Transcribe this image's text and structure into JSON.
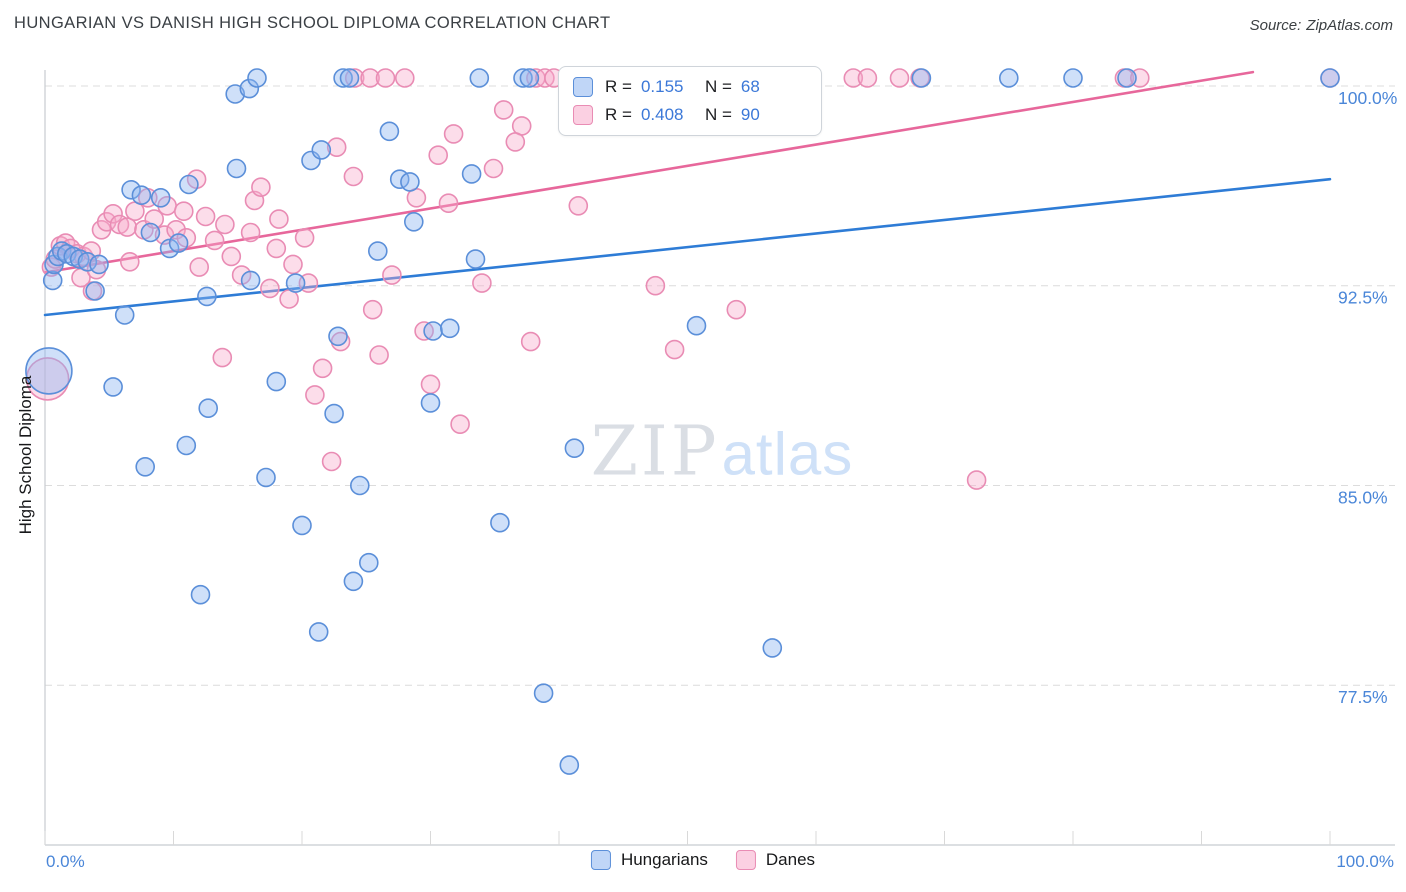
{
  "title": "HUNGARIAN VS DANISH HIGH SCHOOL DIPLOMA CORRELATION CHART",
  "source": {
    "label": "Source:",
    "name": "ZipAtlas.com"
  },
  "watermark": {
    "part1": "ZIP",
    "part2": "atlas"
  },
  "legend_box": {
    "rows": [
      {
        "r_label": "R =",
        "r_value": "0.155",
        "n_label": "N =",
        "n_value": "68"
      },
      {
        "r_label": "R =",
        "r_value": "0.408",
        "n_label": "N =",
        "n_value": "90"
      }
    ]
  },
  "bottom_legend": [
    {
      "label": "Hungarians"
    },
    {
      "label": "Danes"
    }
  ],
  "colors": {
    "grid": "#dcdcdc",
    "axis": "#c8ccd0",
    "tick_label": "#4a86d8",
    "hungarian_stroke": "#5b8fd9",
    "hungarian_fill": "rgba(141,180,240,0.42)",
    "hungarian_trend": "#2e7cd6",
    "dane_stroke": "#e98cb4",
    "dane_fill": "rgba(247,170,202,0.40)",
    "dane_trend": "#e7679b"
  },
  "chart_data": {
    "type": "scatter",
    "title": "HUNGARIAN VS DANISH HIGH SCHOOL DIPLOMA CORRELATION CHART",
    "xlabel": "",
    "ylabel": "High School Diploma",
    "xlim": [
      0,
      105
    ],
    "ylim": [
      71.5,
      100.6
    ],
    "x_tick_labels": [
      "0.0%",
      "100.0%"
    ],
    "y_ticks": [
      {
        "value": 100.0,
        "label": "100.0%"
      },
      {
        "value": 92.5,
        "label": "92.5%"
      },
      {
        "value": 85.0,
        "label": "85.0%"
      },
      {
        "value": 77.5,
        "label": "77.5%"
      }
    ],
    "grid": "horizontal-dashed",
    "legend_position": "top-center",
    "series": [
      {
        "name": "Hungarians",
        "R": 0.155,
        "N": 68,
        "stroke": "#5b8fd9",
        "fill": "rgba(141,180,240,0.42)",
        "trend": "#2e7cd6",
        "points": [
          [
            0.3,
            89.3,
            23
          ],
          [
            0.6,
            92.7
          ],
          [
            0.7,
            93.3
          ],
          [
            1.0,
            93.6
          ],
          [
            1.3,
            93.8
          ],
          [
            1.7,
            93.7
          ],
          [
            2.2,
            93.6
          ],
          [
            2.7,
            93.5
          ],
          [
            3.3,
            93.4
          ],
          [
            4.2,
            93.3
          ],
          [
            3.9,
            92.3
          ],
          [
            5.3,
            88.7
          ],
          [
            6.2,
            91.4
          ],
          [
            6.7,
            96.1
          ],
          [
            7.5,
            95.9
          ],
          [
            7.8,
            85.7
          ],
          [
            8.2,
            94.5
          ],
          [
            9.0,
            95.8
          ],
          [
            9.7,
            93.9
          ],
          [
            10.4,
            94.1
          ],
          [
            11.0,
            86.5
          ],
          [
            11.2,
            96.3
          ],
          [
            12.1,
            80.9
          ],
          [
            12.6,
            92.1
          ],
          [
            12.7,
            87.9
          ],
          [
            14.8,
            99.7
          ],
          [
            14.9,
            96.9
          ],
          [
            15.9,
            99.9
          ],
          [
            16.0,
            92.7
          ],
          [
            16.5,
            100.3
          ],
          [
            17.2,
            85.3
          ],
          [
            18.0,
            88.9
          ],
          [
            19.5,
            92.6
          ],
          [
            20.0,
            83.5
          ],
          [
            20.7,
            97.2
          ],
          [
            21.3,
            79.5
          ],
          [
            21.5,
            97.6
          ],
          [
            22.5,
            87.7
          ],
          [
            22.8,
            90.6
          ],
          [
            23.2,
            100.3
          ],
          [
            23.7,
            100.3
          ],
          [
            24.0,
            81.4
          ],
          [
            24.5,
            85.0
          ],
          [
            25.2,
            82.1
          ],
          [
            25.9,
            93.8
          ],
          [
            26.8,
            98.3
          ],
          [
            27.6,
            96.5
          ],
          [
            28.4,
            96.4
          ],
          [
            28.7,
            94.9
          ],
          [
            30.0,
            88.1
          ],
          [
            30.2,
            90.8
          ],
          [
            31.5,
            90.9
          ],
          [
            33.2,
            96.7
          ],
          [
            33.5,
            93.5
          ],
          [
            33.8,
            100.3
          ],
          [
            35.4,
            83.6
          ],
          [
            37.2,
            100.3
          ],
          [
            37.7,
            100.3
          ],
          [
            38.8,
            77.2
          ],
          [
            40.8,
            74.5
          ],
          [
            41.2,
            86.4
          ],
          [
            50.7,
            91.0
          ],
          [
            56.6,
            78.9
          ],
          [
            68.2,
            100.3
          ],
          [
            75.0,
            100.3
          ],
          [
            80.0,
            100.3
          ],
          [
            84.2,
            100.3
          ],
          [
            100.0,
            100.3
          ]
        ]
      },
      {
        "name": "Danes",
        "R": 0.408,
        "N": 90,
        "stroke": "#e98cb4",
        "fill": "rgba(247,170,202,0.40)",
        "trend": "#e7679b",
        "points": [
          [
            24.1,
            100.3
          ],
          [
            25.3,
            100.3
          ],
          [
            26.5,
            100.3
          ],
          [
            28.0,
            100.3
          ],
          [
            38.2,
            100.3
          ],
          [
            38.9,
            100.3
          ],
          [
            39.6,
            100.3
          ],
          [
            44.0,
            100.3
          ],
          [
            44.9,
            100.3
          ],
          [
            51.0,
            100.3
          ],
          [
            51.9,
            100.3
          ],
          [
            62.9,
            100.3
          ],
          [
            64.0,
            100.3
          ],
          [
            66.5,
            100.3
          ],
          [
            68.1,
            100.3
          ],
          [
            84.0,
            100.3
          ],
          [
            85.2,
            100.3
          ],
          [
            100.0,
            100.3
          ],
          [
            35.7,
            99.1
          ],
          [
            37.1,
            98.5
          ],
          [
            31.8,
            98.2
          ],
          [
            30.6,
            97.4
          ],
          [
            22.7,
            97.7
          ],
          [
            24.0,
            96.6
          ],
          [
            34.9,
            96.9
          ],
          [
            31.4,
            95.6
          ],
          [
            28.9,
            95.8
          ],
          [
            11.8,
            96.5
          ],
          [
            12.5,
            95.1
          ],
          [
            16.3,
            95.7
          ],
          [
            18.2,
            95.0
          ],
          [
            14.0,
            94.8
          ],
          [
            16.0,
            94.5
          ],
          [
            18.0,
            93.9
          ],
          [
            20.2,
            94.3
          ],
          [
            16.8,
            96.2
          ],
          [
            41.5,
            95.5
          ],
          [
            0.5,
            93.2
          ],
          [
            0.8,
            93.5
          ],
          [
            1.2,
            94.0
          ],
          [
            1.6,
            94.1
          ],
          [
            2.0,
            93.9
          ],
          [
            2.5,
            93.7
          ],
          [
            3.0,
            93.6
          ],
          [
            3.6,
            93.8
          ],
          [
            4.4,
            94.6
          ],
          [
            4.8,
            94.9
          ],
          [
            5.3,
            95.2
          ],
          [
            5.8,
            94.8
          ],
          [
            6.4,
            94.7
          ],
          [
            7.0,
            95.3
          ],
          [
            7.7,
            94.6
          ],
          [
            8.5,
            95.0
          ],
          [
            9.3,
            94.4
          ],
          [
            10.2,
            94.6
          ],
          [
            11.0,
            94.3
          ],
          [
            8.0,
            95.8
          ],
          [
            9.5,
            95.5
          ],
          [
            10.8,
            95.3
          ],
          [
            2.8,
            92.8
          ],
          [
            4.0,
            93.1
          ],
          [
            6.6,
            93.4
          ],
          [
            12.0,
            93.2
          ],
          [
            13.2,
            94.2
          ],
          [
            14.5,
            93.6
          ],
          [
            0.2,
            89.0,
            21
          ],
          [
            3.7,
            92.3
          ],
          [
            13.8,
            89.8
          ],
          [
            15.3,
            92.9
          ],
          [
            17.5,
            92.4
          ],
          [
            19.0,
            92.0
          ],
          [
            19.3,
            93.3
          ],
          [
            20.5,
            92.6
          ],
          [
            21.0,
            88.4
          ],
          [
            21.6,
            89.4
          ],
          [
            23.0,
            90.4
          ],
          [
            25.5,
            91.6
          ],
          [
            26.0,
            89.9
          ],
          [
            22.3,
            85.9
          ],
          [
            27.0,
            92.9
          ],
          [
            29.5,
            90.8
          ],
          [
            30.0,
            88.8
          ],
          [
            32.3,
            87.3
          ],
          [
            34.0,
            92.6
          ],
          [
            37.8,
            90.4
          ],
          [
            47.5,
            92.5
          ],
          [
            49.0,
            90.1
          ],
          [
            53.8,
            91.6
          ],
          [
            72.5,
            85.2
          ],
          [
            36.6,
            97.9
          ]
        ]
      }
    ],
    "trend_lines": [
      {
        "series": "Hungarians",
        "start": [
          0,
          91.4
        ],
        "end": [
          100,
          96.5
        ]
      },
      {
        "series": "Danes",
        "start": [
          0,
          93.0
        ],
        "end": [
          100,
          101.0
        ]
      }
    ]
  }
}
